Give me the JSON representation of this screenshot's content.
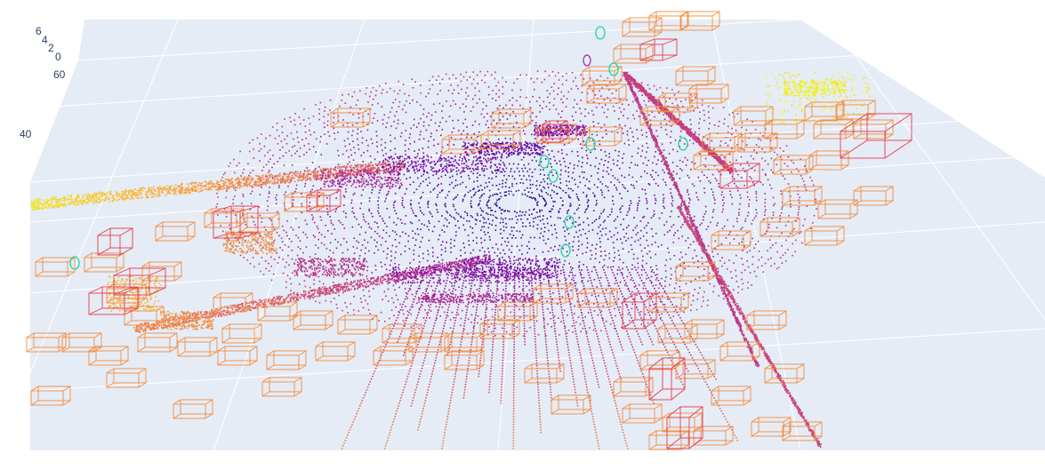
{
  "scene": {
    "background_color": "#e5ecf6",
    "grid_color": "#ffffff",
    "car_box_color": "#f58c3c",
    "ego_box_color": "#e83a4a",
    "ped_marker_color": "#1fd6a0",
    "colorscale": [
      "#0d0887",
      "#6a00a8",
      "#b12a90",
      "#e16462",
      "#fca636",
      "#f0f921"
    ]
  },
  "axes": {
    "z_tick_labels": [
      "6",
      "4",
      "2",
      "0"
    ],
    "y_tick_labels": [
      "60",
      "40"
    ]
  }
}
